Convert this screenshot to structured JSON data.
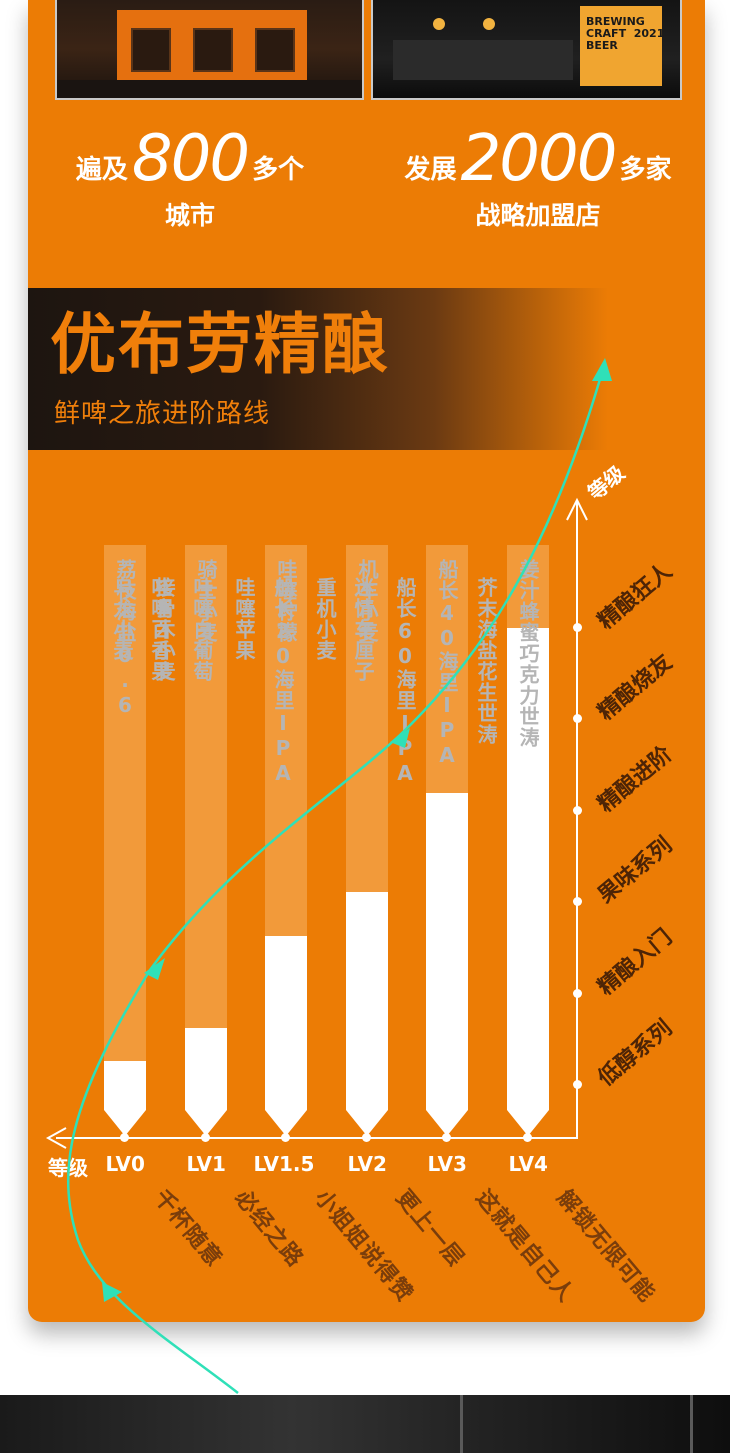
{
  "stats": [
    {
      "pre": "遍及",
      "number": "800",
      "post": "多个",
      "sub": "城市"
    },
    {
      "pre": "发展",
      "number": "2000",
      "post": "多家",
      "sub": "战略加盟店"
    }
  ],
  "photos": {
    "bar_sign": "BREWING\nCRAFT  2021\nBEER"
  },
  "banner": {
    "title": "优布劳精酿",
    "subtitle": "鲜啤之旅进阶路线"
  },
  "chart_data": {
    "type": "bar",
    "x_axis_label": "等级",
    "y_axis_label": "等级",
    "categories": [
      "LV0",
      "LV1",
      "LV1.5",
      "LV2",
      "LV3",
      "LV4"
    ],
    "y_levels": [
      "低醇系列",
      "精酿入门",
      "果味系列",
      "精酿进阶",
      "精酿烧友",
      "精酿狂人"
    ],
    "values": [
      1,
      2,
      3,
      4,
      5,
      6
    ],
    "bars": [
      {
        "level": "LV0",
        "beers": [
          "荔枝海盐0.6"
        ],
        "slogan": "千杯随意"
      },
      {
        "level": "LV1",
        "beers": [
          "骑士小麦",
          "接骨木小麦",
          "乌龙小麦"
        ],
        "slogan": "必经之路"
      },
      {
        "level": "LV1.5",
        "beers": [
          "哇噻柠檬",
          "哇噻苹果",
          "哇噻白葡萄",
          "哇噻百香果"
        ],
        "slogan": "小姐姐说得赞"
      },
      {
        "level": "LV2",
        "beers": [
          "机车小麦",
          "重机小麦",
          "船长20海里IPA"
        ],
        "slogan": "更上一层"
      },
      {
        "level": "LV3",
        "beers": [
          "船长40海里IPA",
          "船长60海里IPA",
          "迷情车厘子"
        ],
        "slogan": "这就是自己人"
      },
      {
        "level": "LV4",
        "beers": [
          "姜汁蜂蜜巧克力世涛",
          "芥末海盐花生世涛"
        ],
        "slogan": "解锁无限可能"
      }
    ]
  },
  "colors": {
    "background": "#ec7c05",
    "bar_fill": "#ffffff",
    "bar_track": "#f29a3a",
    "arrow": "#2fe0b8"
  }
}
